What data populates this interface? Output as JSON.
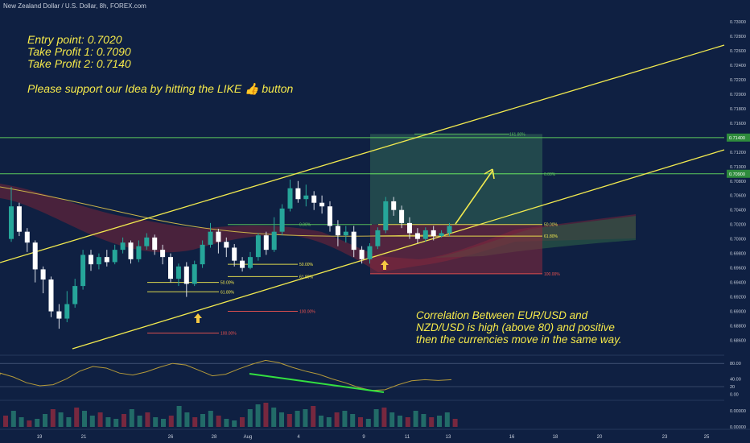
{
  "header": {
    "title": "New Zealand Dollar / U.S. Dollar, 8h, FOREX.com"
  },
  "notes": {
    "entry": "Entry point: 0.7020",
    "tp1": "Take Profit 1:  0.7090",
    "tp2": "Take Profit 2: 0.7140",
    "support": "Please support our Idea by hitting the LIKE 👍 button"
  },
  "correlation": {
    "line1": "Correlation Between EUR/USD and",
    "line2": "NZD/USD is high (above 80) and positive",
    "line3": "then the currencies move in the same way."
  },
  "colors": {
    "background": "#0f2042",
    "up": "#26a69a",
    "down": "#ef5350",
    "candle_dark": "#0c1a33",
    "candle_light": "#ffffff",
    "trend": "#f2ea4f",
    "target_line": "#5cc95c",
    "divergence": "#33e040",
    "oscillator": "#b59a3a"
  },
  "chart_data": {
    "type": "candlestick",
    "y_axis": {
      "ylim": [
        0.6845,
        0.731
      ],
      "ticks": [
        "0.73000",
        "0.72800",
        "0.72600",
        "0.72400",
        "0.72200",
        "0.72000",
        "0.71800",
        "0.71600",
        "0.71400",
        "0.71200",
        "0.71000",
        "0.70800",
        "0.70600",
        "0.70400",
        "0.70200",
        "0.70000",
        "0.69800",
        "0.69600",
        "0.69400",
        "0.69200",
        "0.69000",
        "0.68800",
        "0.68600"
      ],
      "tick_values": [
        0.73,
        0.728,
        0.726,
        0.724,
        0.722,
        0.72,
        0.718,
        0.716,
        0.714,
        0.712,
        0.71,
        0.708,
        0.706,
        0.704,
        0.702,
        0.7,
        0.698,
        0.696,
        0.694,
        0.692,
        0.69,
        0.688,
        0.686
      ],
      "highlight_labels": [
        {
          "label": "0.71400",
          "value": 0.714
        },
        {
          "label": "0.70900",
          "value": 0.709
        }
      ]
    },
    "x_axis": {
      "ticks": [
        "19",
        "21",
        "26",
        "28",
        "Aug",
        "4",
        "9",
        "11",
        "13",
        "16",
        "18",
        "20",
        "23",
        "25"
      ]
    },
    "candles": [
      [
        0.7,
        0.7045,
        0.7072,
        0.6996
      ],
      [
        0.7045,
        0.701,
        0.705,
        0.7004
      ],
      [
        0.701,
        0.6995,
        0.7015,
        0.6982
      ],
      [
        0.6995,
        0.6958,
        0.6998,
        0.694
      ],
      [
        0.6958,
        0.6944,
        0.6962,
        0.6925
      ],
      [
        0.6944,
        0.69,
        0.6948,
        0.6892
      ],
      [
        0.69,
        0.689,
        0.691,
        0.6876
      ],
      [
        0.689,
        0.691,
        0.6928,
        0.6885
      ],
      [
        0.691,
        0.6935,
        0.6945,
        0.6905
      ],
      [
        0.6935,
        0.6978,
        0.6985,
        0.693
      ],
      [
        0.6978,
        0.6965,
        0.6985,
        0.6956
      ],
      [
        0.6965,
        0.6975,
        0.698,
        0.6958
      ],
      [
        0.6975,
        0.6968,
        0.6985,
        0.6962
      ],
      [
        0.6968,
        0.6985,
        0.6992,
        0.6965
      ],
      [
        0.6985,
        0.6995,
        0.7002,
        0.698
      ],
      [
        0.6995,
        0.6972,
        0.6998,
        0.6966
      ],
      [
        0.6972,
        0.699,
        0.6998,
        0.6968
      ],
      [
        0.699,
        0.7002,
        0.7008,
        0.6985
      ],
      [
        0.7002,
        0.6985,
        0.7006,
        0.6978
      ],
      [
        0.6985,
        0.6975,
        0.6992,
        0.6965
      ],
      [
        0.6975,
        0.6945,
        0.698,
        0.694
      ],
      [
        0.6945,
        0.6962,
        0.6966,
        0.6935
      ],
      [
        0.6962,
        0.6938,
        0.6968,
        0.692
      ],
      [
        0.6938,
        0.6965,
        0.697,
        0.6935
      ],
      [
        0.6965,
        0.6992,
        0.6998,
        0.696
      ],
      [
        0.6992,
        0.701,
        0.7022,
        0.6988
      ],
      [
        0.701,
        0.6996,
        0.7014,
        0.698
      ],
      [
        0.6996,
        0.6988,
        0.7002,
        0.6975
      ],
      [
        0.6988,
        0.697,
        0.6993,
        0.6962
      ],
      [
        0.697,
        0.696,
        0.6975,
        0.6955
      ],
      [
        0.696,
        0.6975,
        0.6982,
        0.6958
      ],
      [
        0.6975,
        0.7005,
        0.7008,
        0.697
      ],
      [
        0.7005,
        0.6985,
        0.701,
        0.6978
      ],
      [
        0.6985,
        0.701,
        0.703,
        0.6982
      ],
      [
        0.701,
        0.7042,
        0.7048,
        0.7005
      ],
      [
        0.7042,
        0.707,
        0.7082,
        0.7038
      ],
      [
        0.707,
        0.7055,
        0.708,
        0.705
      ],
      [
        0.7055,
        0.706,
        0.7075,
        0.7045
      ],
      [
        0.706,
        0.705,
        0.7066,
        0.704
      ],
      [
        0.705,
        0.7045,
        0.706,
        0.7035
      ],
      [
        0.7045,
        0.7018,
        0.7052,
        0.701
      ],
      [
        0.7018,
        0.7005,
        0.7026,
        0.699
      ],
      [
        0.7005,
        0.701,
        0.7018,
        0.6995
      ],
      [
        0.701,
        0.6985,
        0.7018,
        0.6975
      ],
      [
        0.6985,
        0.6972,
        0.699,
        0.6966
      ],
      [
        0.6972,
        0.699,
        0.6994,
        0.6966
      ],
      [
        0.699,
        0.7012,
        0.7016,
        0.6986
      ],
      [
        0.7012,
        0.7052,
        0.7058,
        0.7008
      ],
      [
        0.7052,
        0.704,
        0.7058,
        0.7032
      ],
      [
        0.704,
        0.7022,
        0.7046,
        0.7015
      ],
      [
        0.7022,
        0.7008,
        0.703,
        0.7
      ],
      [
        0.7008,
        0.7,
        0.7015,
        0.6994
      ],
      [
        0.7,
        0.7012,
        0.7016,
        0.6996
      ],
      [
        0.7012,
        0.7004,
        0.7018,
        0.6998
      ],
      [
        0.7004,
        0.7008,
        0.7012,
        0.7002
      ],
      [
        0.7008,
        0.7018,
        0.7022,
        0.7004
      ]
    ],
    "horizontal_levels": [
      {
        "label": "0.00%",
        "value": 0.709
      },
      {
        "label": "161.80%",
        "value": 0.7145
      },
      {
        "label": "50.00%",
        "value": 0.702
      },
      {
        "label": "61.80%",
        "value": 0.7004
      },
      {
        "label": "100.00%",
        "value": 0.6952
      },
      {
        "label": "0.00%",
        "value": 0.702
      },
      {
        "label": "50.00%",
        "value": 0.6965
      },
      {
        "label": "61.80%",
        "value": 0.6948
      },
      {
        "label": "50.00%",
        "value": 0.694
      },
      {
        "label": "61.80%",
        "value": 0.6927
      },
      {
        "label": "100.00%",
        "value": 0.69
      },
      {
        "label": "100.00%",
        "value": 0.687
      }
    ],
    "oscillator": {
      "ticks": [
        "80.00",
        "40.00",
        "20",
        "0.00"
      ],
      "tick_values": [
        80,
        40,
        20,
        0
      ],
      "ylim": [
        -5,
        95
      ]
    },
    "volume": {
      "ticks": [
        "0.00000",
        "0.00000"
      ]
    }
  }
}
